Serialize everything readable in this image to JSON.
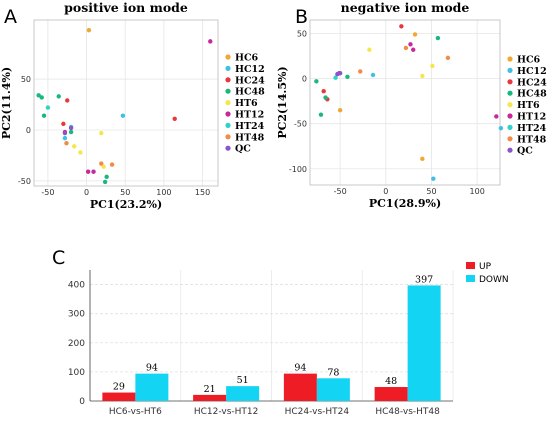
{
  "panels": {
    "A": "A",
    "B": "B",
    "C": "C"
  },
  "chart_data": [
    {
      "type": "scatter",
      "title": "positive ion mode",
      "xlabel": "PC1(23.2%)",
      "ylabel": "PC2(11.4%)",
      "xlim": [
        -68,
        170
      ],
      "ylim": [
        -55,
        108
      ],
      "xticks": [
        -50,
        0,
        50,
        100,
        150
      ],
      "yticks": [
        -50,
        0,
        50
      ],
      "grid": true,
      "legend_position": "right",
      "series": [
        {
          "name": "HC6",
          "color": "#f0a830",
          "points": [
            [
              3,
              98
            ]
          ]
        },
        {
          "name": "HC12",
          "color": "#3fc1e6",
          "points": [
            [
              47,
              14
            ],
            [
              -28,
              -8
            ],
            [
              -20,
              3
            ]
          ]
        },
        {
          "name": "HC24",
          "color": "#e8383e",
          "points": [
            [
              114,
              11
            ],
            [
              -25,
              29
            ],
            [
              -30,
              6
            ]
          ]
        },
        {
          "name": "HC48",
          "color": "#19b87d",
          "points": [
            [
              -55,
              14
            ],
            [
              -62,
              34
            ],
            [
              -58,
              32
            ],
            [
              -36,
              33
            ],
            [
              26,
              -46
            ],
            [
              24,
              -51
            ],
            [
              -20,
              -2
            ]
          ]
        },
        {
          "name": "HT6",
          "color": "#f6e64b",
          "points": [
            [
              -16,
              -16
            ],
            [
              -8,
              -22
            ],
            [
              19,
              -3
            ],
            [
              22,
              -36
            ]
          ]
        },
        {
          "name": "HT12",
          "color": "#c6299a",
          "points": [
            [
              160,
              87
            ],
            [
              2,
              -41
            ],
            [
              9,
              -41
            ],
            [
              -28,
              -2
            ]
          ]
        },
        {
          "name": "HT24",
          "color": "#2ed3c8",
          "points": [
            [
              -50,
              22
            ]
          ]
        },
        {
          "name": "HT48",
          "color": "#f08c46",
          "points": [
            [
              -26,
              -13
            ],
            [
              19,
              -33
            ],
            [
              33,
              -34
            ]
          ]
        },
        {
          "name": "QC",
          "color": "#8a55c9",
          "points": [
            [
              -28,
              -3
            ],
            [
              -20,
              2
            ]
          ]
        }
      ]
    },
    {
      "type": "scatter",
      "title": "negative ion mode",
      "xlabel": "PC1(28.9%)",
      "ylabel": "PC2(14.5%)",
      "xlim": [
        -83,
        125
      ],
      "ylim": [
        -118,
        65
      ],
      "xticks": [
        -50,
        0,
        50,
        100
      ],
      "yticks": [
        -100,
        -50,
        0,
        50
      ],
      "grid": true,
      "legend_position": "right",
      "series": [
        {
          "name": "HC6",
          "color": "#f0a830",
          "points": [
            [
              -50,
              -35
            ],
            [
              40,
              -89
            ],
            [
              32,
              49
            ]
          ]
        },
        {
          "name": "HC12",
          "color": "#3fc1e6",
          "points": [
            [
              -14,
              4
            ],
            [
              52,
              -111
            ],
            [
              126,
              -55
            ]
          ]
        },
        {
          "name": "HC24",
          "color": "#e8383e",
          "points": [
            [
              17,
              58
            ],
            [
              -64,
              -23
            ],
            [
              -68,
              -14
            ]
          ]
        },
        {
          "name": "HC48",
          "color": "#19b87d",
          "points": [
            [
              -76,
              -3
            ],
            [
              -71,
              -40
            ],
            [
              -66,
              -21
            ],
            [
              -42,
              2
            ],
            [
              57,
              45
            ]
          ]
        },
        {
          "name": "HT6",
          "color": "#f6e64b",
          "points": [
            [
              -18,
              32
            ],
            [
              40,
              3
            ],
            [
              51,
              14
            ]
          ]
        },
        {
          "name": "HT12",
          "color": "#c6299a",
          "points": [
            [
              121,
              -42
            ],
            [
              27,
              38
            ],
            [
              30,
              32
            ],
            [
              -51,
              6
            ]
          ]
        },
        {
          "name": "HT24",
          "color": "#2ed3c8",
          "points": [
            [
              -55,
              1
            ]
          ]
        },
        {
          "name": "HT48",
          "color": "#f08c46",
          "points": [
            [
              -28,
              8
            ],
            [
              22,
              34
            ],
            [
              68,
              23
            ]
          ]
        },
        {
          "name": "QC",
          "color": "#8a55c9",
          "points": [
            [
              -53,
              5
            ],
            [
              -50,
              6
            ]
          ]
        }
      ]
    },
    {
      "type": "bar",
      "categories": [
        "HC6-vs-HT6",
        "HC12-vs-HT12",
        "HC24-vs-HT24",
        "HC48-vs-HT48"
      ],
      "series": [
        {
          "name": "UP",
          "color": "#ee1c25",
          "values": [
            29,
            21,
            94,
            48
          ]
        },
        {
          "name": "DOWN",
          "color": "#13d4f2",
          "values": [
            94,
            51,
            78,
            397
          ]
        }
      ],
      "ylim": [
        0,
        450
      ],
      "yticks": [
        0,
        100,
        200,
        300,
        400
      ],
      "grid": true,
      "legend_position": "top-right"
    }
  ]
}
